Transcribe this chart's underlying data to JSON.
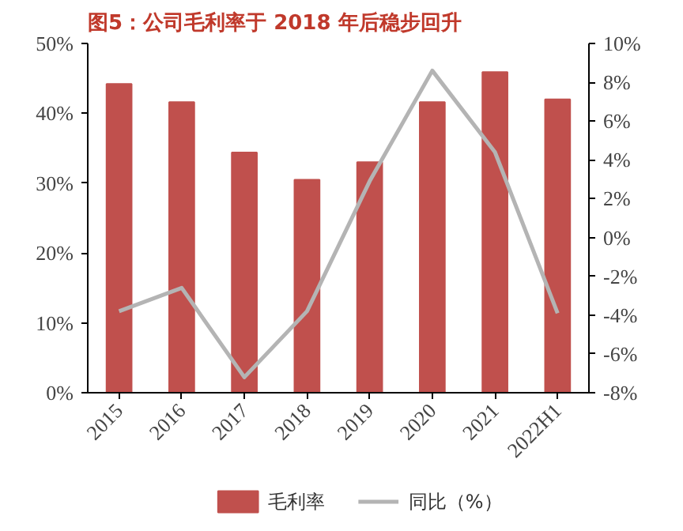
{
  "chart_data": {
    "type": "bar",
    "title": "图5：公司毛利率于 2018 年后稳步回升",
    "categories": [
      "2015",
      "2016",
      "2017",
      "2018",
      "2019",
      "2020",
      "2021",
      "2022H1"
    ],
    "series": [
      {
        "name": "毛利率",
        "type": "bar",
        "color": "#c0504d",
        "values": [
          44.2,
          41.6,
          34.4,
          30.5,
          33.0,
          41.6,
          45.9,
          42.0
        ]
      },
      {
        "name": "同比（%）",
        "type": "line",
        "axis": "y2",
        "color": "#b4b4b4",
        "values": [
          -3.8,
          -2.6,
          -7.2,
          -3.8,
          2.9,
          8.6,
          4.4,
          -3.9
        ]
      }
    ],
    "ylim": [
      0,
      50
    ],
    "yticks": [
      {
        "value": 0,
        "label": "0%"
      },
      {
        "value": 10,
        "label": "10%"
      },
      {
        "value": 20,
        "label": "20%"
      },
      {
        "value": 30,
        "label": "30%"
      },
      {
        "value": 40,
        "label": "40%"
      },
      {
        "value": 50,
        "label": "50%"
      }
    ],
    "y2lim": [
      -8,
      10
    ],
    "y2ticks": [
      {
        "value": -8,
        "label": "-8%"
      },
      {
        "value": -6,
        "label": "-6%"
      },
      {
        "value": -4,
        "label": "-4%"
      },
      {
        "value": -2,
        "label": "-2%"
      },
      {
        "value": 0,
        "label": "0%"
      },
      {
        "value": 2,
        "label": "2%"
      },
      {
        "value": 4,
        "label": "4%"
      },
      {
        "value": 6,
        "label": "6%"
      },
      {
        "value": 8,
        "label": "8%"
      },
      {
        "value": 10,
        "label": "10%"
      }
    ],
    "grid": false,
    "legend": "bottom",
    "marker": "none",
    "line_style": "solid"
  }
}
